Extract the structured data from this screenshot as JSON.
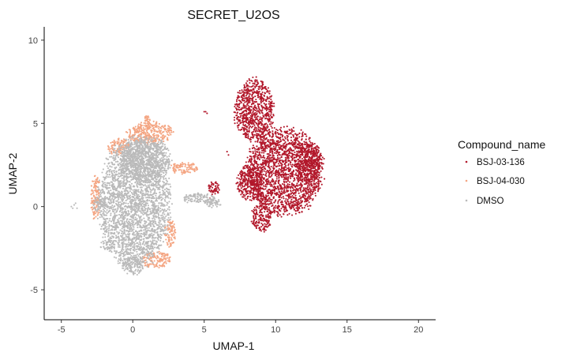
{
  "chart_data": {
    "type": "scatter",
    "title": "SECRET_U2OS",
    "xlabel": "UMAP-1",
    "ylabel": "UMAP-2",
    "xlim": [
      -6.2,
      21.2
    ],
    "ylim": [
      -6.8,
      10.8
    ],
    "x_ticks": [
      -5,
      0,
      5,
      10,
      15,
      20
    ],
    "y_ticks": [
      -5,
      0,
      5,
      10
    ],
    "grid": false,
    "legend": {
      "title": "Compound_name",
      "position": "right",
      "entries": [
        "BSJ-03-136",
        "BSJ-04-030",
        "DMSO"
      ]
    },
    "series": [
      {
        "name": "BSJ-03-136",
        "color": "#b2182b",
        "regions": [
          {
            "cx": 10.6,
            "cy": 2.1,
            "rx": 2.7,
            "ry": 2.6
          },
          {
            "cx": 8.5,
            "cy": 5.8,
            "rx": 1.4,
            "ry": 1.9
          },
          {
            "cx": 8.2,
            "cy": 1.4,
            "rx": 0.9,
            "ry": 1.1
          },
          {
            "cx": 9.0,
            "cy": -0.6,
            "rx": 0.7,
            "ry": 0.9
          },
          {
            "cx": 12.3,
            "cy": 2.7,
            "rx": 0.9,
            "ry": 1.2
          },
          {
            "cx": 5.7,
            "cy": 1.1,
            "rx": 0.45,
            "ry": 0.4
          }
        ],
        "extra_points": [
          [
            5.1,
            5.7
          ],
          [
            5.2,
            5.6
          ],
          [
            5.0,
            5.7
          ],
          [
            6.6,
            3.3
          ],
          [
            6.7,
            3.1
          ],
          [
            5.4,
            0.5
          ]
        ]
      },
      {
        "name": "BSJ-04-030",
        "color": "#f4a582",
        "regions": [
          {
            "cx": 1.2,
            "cy": 4.4,
            "rx": 1.6,
            "ry": 0.7
          },
          {
            "cx": 1.0,
            "cy": 5.2,
            "rx": 0.2,
            "ry": 0.5
          },
          {
            "cx": 3.6,
            "cy": 2.3,
            "rx": 1.0,
            "ry": 0.35
          },
          {
            "cx": -2.6,
            "cy": 0.5,
            "rx": 0.35,
            "ry": 1.3
          },
          {
            "cx": 1.6,
            "cy": -3.2,
            "rx": 1.1,
            "ry": 0.5
          },
          {
            "cx": 2.6,
            "cy": -1.6,
            "rx": 0.4,
            "ry": 0.8
          },
          {
            "cx": -1.0,
            "cy": 3.6,
            "rx": 0.8,
            "ry": 0.5
          }
        ],
        "extra_points": []
      },
      {
        "name": "DMSO",
        "color": "#bababa",
        "regions": [
          {
            "cx": 0.1,
            "cy": 0.2,
            "rx": 2.5,
            "ry": 3.8
          },
          {
            "cx": 0.9,
            "cy": 2.8,
            "rx": 1.8,
            "ry": 1.4
          },
          {
            "cx": 4.6,
            "cy": 0.5,
            "rx": 1.2,
            "ry": 0.3
          },
          {
            "cx": 5.6,
            "cy": 0.2,
            "rx": 0.6,
            "ry": 0.3
          },
          {
            "cx": -2.3,
            "cy": 0.1,
            "rx": 0.5,
            "ry": 0.4
          },
          {
            "cx": 0.0,
            "cy": -3.6,
            "rx": 0.8,
            "ry": 0.5
          },
          {
            "cx": -1.8,
            "cy": -2.3,
            "rx": 0.5,
            "ry": 0.3
          }
        ],
        "extra_points": [
          [
            -4.3,
            0.0
          ],
          [
            -4.1,
            0.1
          ],
          [
            -3.9,
            -0.1
          ],
          [
            -4.2,
            -0.1
          ],
          [
            -4.0,
            0.2
          ]
        ]
      }
    ]
  }
}
